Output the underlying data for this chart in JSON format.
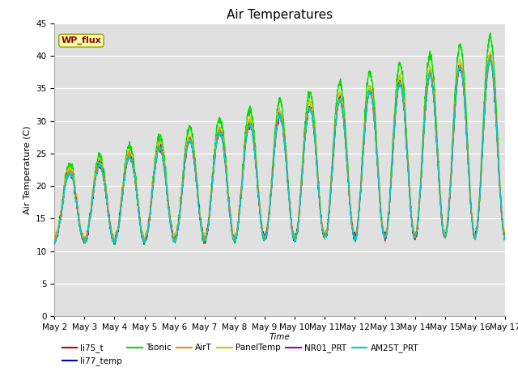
{
  "title": "Air Temperatures",
  "xlabel": "Time",
  "ylabel": "Air Temperature (C)",
  "ylim": [
    0,
    45
  ],
  "yticks": [
    0,
    5,
    10,
    15,
    20,
    25,
    30,
    35,
    40,
    45
  ],
  "n_days": 15,
  "points_per_day": 144,
  "background_color": "#ffffff",
  "plot_bg_color": "#e0e0e0",
  "series": [
    {
      "name": "li75_t",
      "color": "#cc0000",
      "lw": 0.8,
      "zorder": 5
    },
    {
      "name": "li77_temp",
      "color": "#0000cc",
      "lw": 0.8,
      "zorder": 4
    },
    {
      "name": "Tsonic",
      "color": "#00dd00",
      "lw": 1.0,
      "zorder": 3
    },
    {
      "name": "AirT",
      "color": "#ff8800",
      "lw": 0.8,
      "zorder": 5
    },
    {
      "name": "PanelTemp",
      "color": "#cccc00",
      "lw": 0.8,
      "zorder": 4
    },
    {
      "name": "NR01_PRT",
      "color": "#9900cc",
      "lw": 0.8,
      "zorder": 4
    },
    {
      "name": "AM25T_PRT",
      "color": "#00cccc",
      "lw": 1.0,
      "zorder": 6
    }
  ],
  "wp_flux_box": {
    "text": "WP_flux",
    "facecolor": "#ffffaa",
    "edgecolor": "#999900",
    "textcolor": "#880000",
    "fontsize": 8
  },
  "title_fontsize": 11,
  "tick_labelsize": 7.5,
  "legend_fontsize": 7.5
}
